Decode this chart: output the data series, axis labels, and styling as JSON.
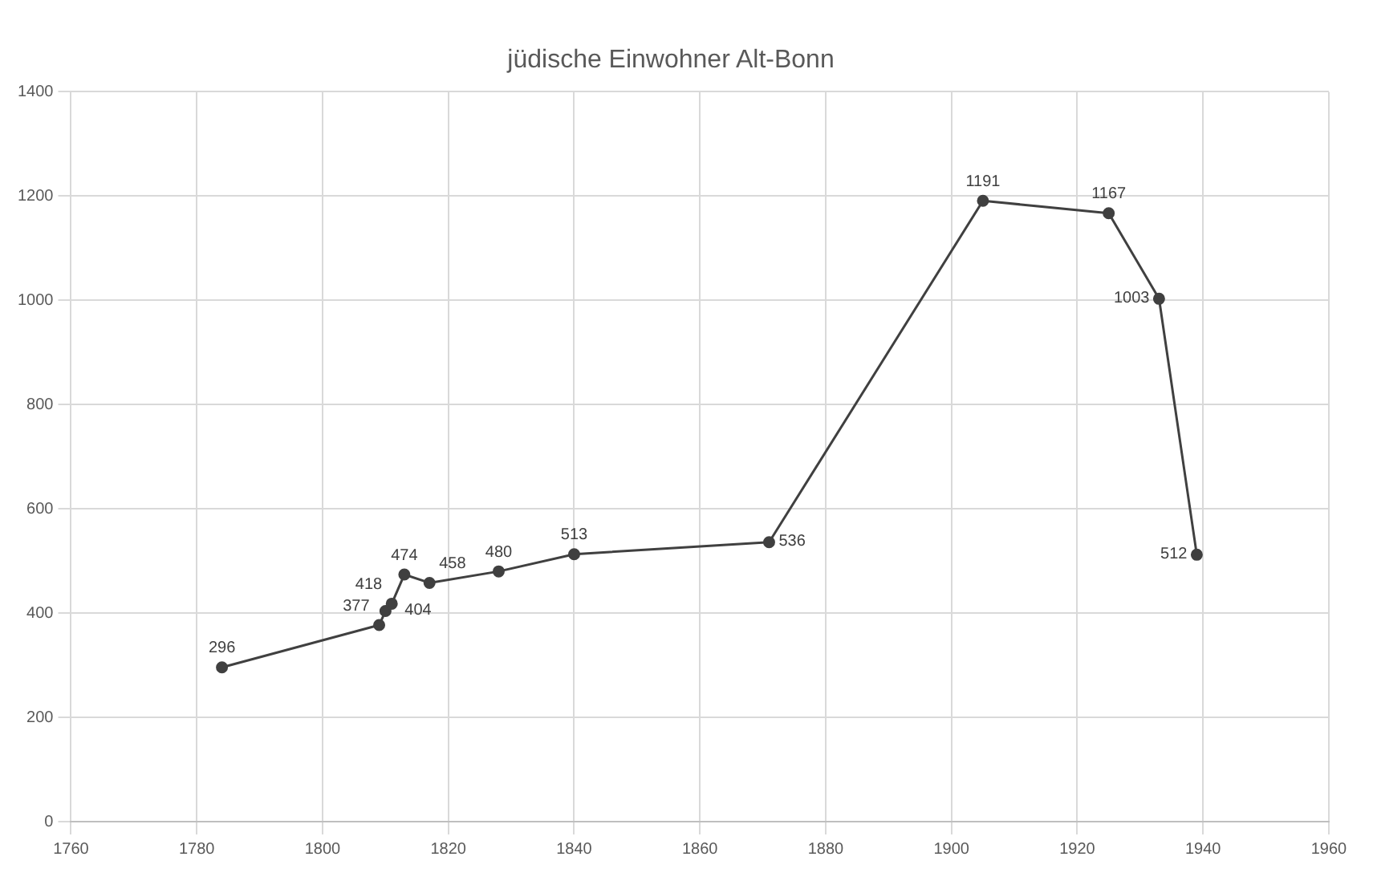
{
  "chart_data": {
    "type": "line",
    "title": "jüdische Einwohner Alt-Bonn",
    "x": [
      1784,
      1809,
      1810,
      1811,
      1813,
      1817,
      1828,
      1840,
      1871,
      1905,
      1925,
      1933,
      1939
    ],
    "series": [
      {
        "color": "#404040",
        "values": [
          296,
          377,
          404,
          418,
          474,
          458,
          480,
          513,
          536,
          1191,
          1167,
          1003,
          512
        ]
      }
    ],
    "xlim": [
      1760,
      1960
    ],
    "xticks": [
      1760,
      1780,
      1800,
      1820,
      1840,
      1860,
      1880,
      1900,
      1920,
      1940,
      1960
    ],
    "ylim": [
      0,
      1400
    ],
    "yticks": [
      0,
      200,
      400,
      600,
      800,
      1000,
      1200,
      1400
    ],
    "grid": true,
    "legend": false,
    "marker": "circle",
    "line_style": "solid",
    "data_labels": true
  }
}
